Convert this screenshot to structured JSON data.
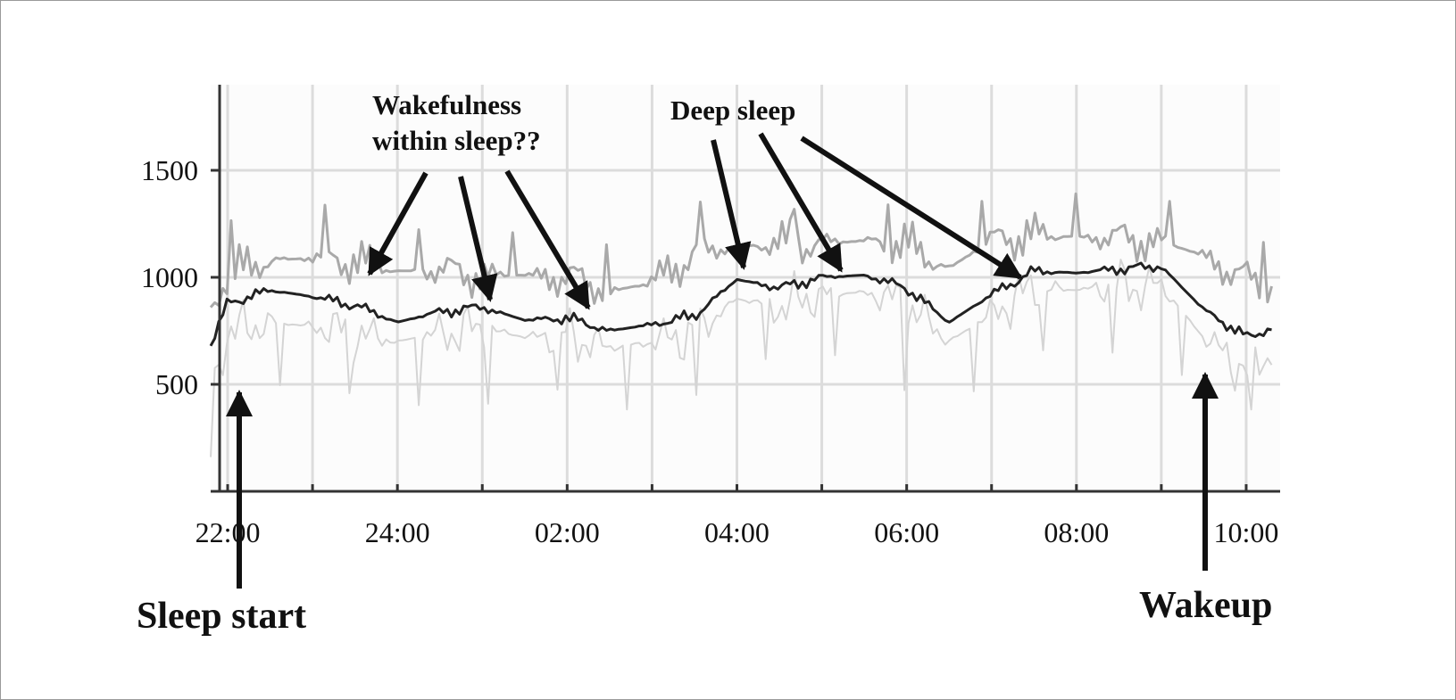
{
  "chart_data": {
    "type": "line",
    "title": "",
    "xlabel": "",
    "ylabel": "",
    "x_hours": [
      21.8,
      22.0,
      22.5,
      23.0,
      23.5,
      24.0,
      24.5,
      25.0,
      25.5,
      26.0,
      26.5,
      27.0,
      27.5,
      28.0,
      28.5,
      29.0,
      29.5,
      30.0,
      30.5,
      31.0,
      31.5,
      32.0,
      32.5,
      33.0,
      33.5,
      34.0,
      34.3
    ],
    "x_tick_labels": [
      "22:00",
      "24:00",
      "02:00",
      "04:00",
      "06:00",
      "08:00",
      "10:00"
    ],
    "x_ticks_hours": [
      22,
      24,
      26,
      28,
      30,
      32,
      34
    ],
    "xlim_hours": [
      21.8,
      34.4
    ],
    "y_ticks": [
      500,
      1000,
      1500
    ],
    "ylim": [
      0,
      1900
    ],
    "grid": true,
    "series": [
      {
        "values": [
          860,
          1010,
          1080,
          1090,
          1080,
          1030,
          1030,
          1010,
          1010,
          1000,
          930,
          980,
          1110,
          1140,
          1160,
          1160,
          1170,
          1150,
          1040,
          1180,
          1200,
          1190,
          1180,
          1170,
          1100,
          990,
          950
        ]
      },
      {
        "values": [
          680,
          880,
          940,
          910,
          870,
          790,
          840,
          860,
          800,
          810,
          750,
          780,
          820,
          990,
          950,
          1000,
          1010,
          950,
          790,
          920,
          1030,
          1020,
          1040,
          1050,
          850,
          720,
          760
        ]
      },
      {
        "values": [
          460,
          740,
          790,
          770,
          740,
          700,
          740,
          760,
          720,
          730,
          670,
          700,
          740,
          900,
          860,
          920,
          930,
          880,
          700,
          830,
          950,
          940,
          960,
          960,
          720,
          560,
          640
        ]
      }
    ],
    "annotations": [
      {
        "text_lines": [
          "Wakefulness",
          "within sleep??"
        ]
      },
      {
        "text_lines": [
          "Deep sleep"
        ]
      },
      {
        "text_lines": [
          "Sleep start"
        ]
      },
      {
        "text_lines": [
          "Wakeup"
        ]
      }
    ]
  }
}
